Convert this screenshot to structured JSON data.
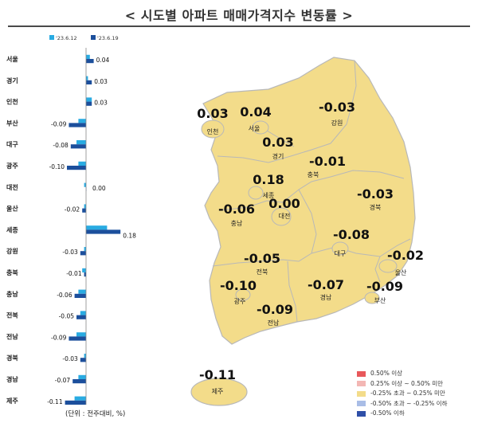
{
  "title": "< 시도별 아파트 매매가격지수 변동률 >",
  "unit_note": "(단위 : 전주대비, %)",
  "colors": {
    "prev_week": "#29abe2",
    "curr_week": "#1c4f9c",
    "map_fill": "#f3dc8a",
    "map_border": "#b8b8b8"
  },
  "chart_data": [
    {
      "type": "bar",
      "orientation": "horizontal",
      "categories": [
        "서울",
        "경기",
        "인천",
        "부산",
        "대구",
        "광주",
        "대전",
        "울산",
        "세종",
        "강원",
        "충북",
        "충남",
        "전북",
        "전남",
        "경북",
        "경남",
        "제주"
      ],
      "series": [
        {
          "name": "'23.6.12",
          "color": "#29abe2",
          "values": [
            0.02,
            0.01,
            0.03,
            -0.04,
            -0.05,
            -0.04,
            -0.01,
            -0.01,
            0.11,
            -0.01,
            -0.02,
            -0.04,
            -0.03,
            -0.05,
            -0.01,
            -0.04,
            -0.06
          ]
        },
        {
          "name": "'23.6.19",
          "color": "#1c4f9c",
          "values": [
            0.04,
            0.03,
            0.03,
            -0.09,
            -0.08,
            -0.1,
            0.0,
            -0.02,
            0.18,
            -0.03,
            -0.01,
            -0.06,
            -0.05,
            -0.09,
            -0.03,
            -0.07,
            -0.11
          ]
        }
      ],
      "data_labels": [
        "0.04",
        "0.03",
        "0.03",
        "-0.09",
        "-0.08",
        "-0.10",
        "0.00",
        "-0.02",
        "0.18",
        "-0.03",
        "-0.01",
        "-0.06",
        "-0.05",
        "-0.09",
        "-0.03",
        "-0.07",
        "-0.11"
      ],
      "legend_placement": "top-left",
      "grid": false
    },
    {
      "type": "choropleth-map",
      "regions": [
        {
          "name": "인천",
          "value": "0.03"
        },
        {
          "name": "서울",
          "value": "0.04"
        },
        {
          "name": "강원",
          "value": "-0.03"
        },
        {
          "name": "경기",
          "value": "0.03"
        },
        {
          "name": "충북",
          "value": "-0.01"
        },
        {
          "name": "세종",
          "value": "0.18"
        },
        {
          "name": "대전",
          "value": "0.00"
        },
        {
          "name": "경북",
          "value": "-0.03"
        },
        {
          "name": "충남",
          "value": "-0.06"
        },
        {
          "name": "대구",
          "value": "-0.08"
        },
        {
          "name": "울산",
          "value": "-0.02"
        },
        {
          "name": "전북",
          "value": "-0.05"
        },
        {
          "name": "광주",
          "value": "-0.10"
        },
        {
          "name": "경남",
          "value": "-0.07"
        },
        {
          "name": "부산",
          "value": "-0.09"
        },
        {
          "name": "전남",
          "value": "-0.09"
        },
        {
          "name": "제주",
          "value": "-0.11"
        }
      ],
      "legend": [
        {
          "label": "0.50% 이상",
          "color": "#e8585b"
        },
        {
          "label": "0.25% 이상 ~ 0.50% 미만",
          "color": "#f3b7b4"
        },
        {
          "label": "-0.25% 초과 ~ 0.25% 미만",
          "color": "#f3dc8a"
        },
        {
          "label": "-0.50% 초과 ~ -0.25% 이하",
          "color": "#a9bde6"
        },
        {
          "label": "-0.50% 이하",
          "color": "#2f4fa8"
        }
      ],
      "legend_placement": "bottom-right"
    }
  ]
}
